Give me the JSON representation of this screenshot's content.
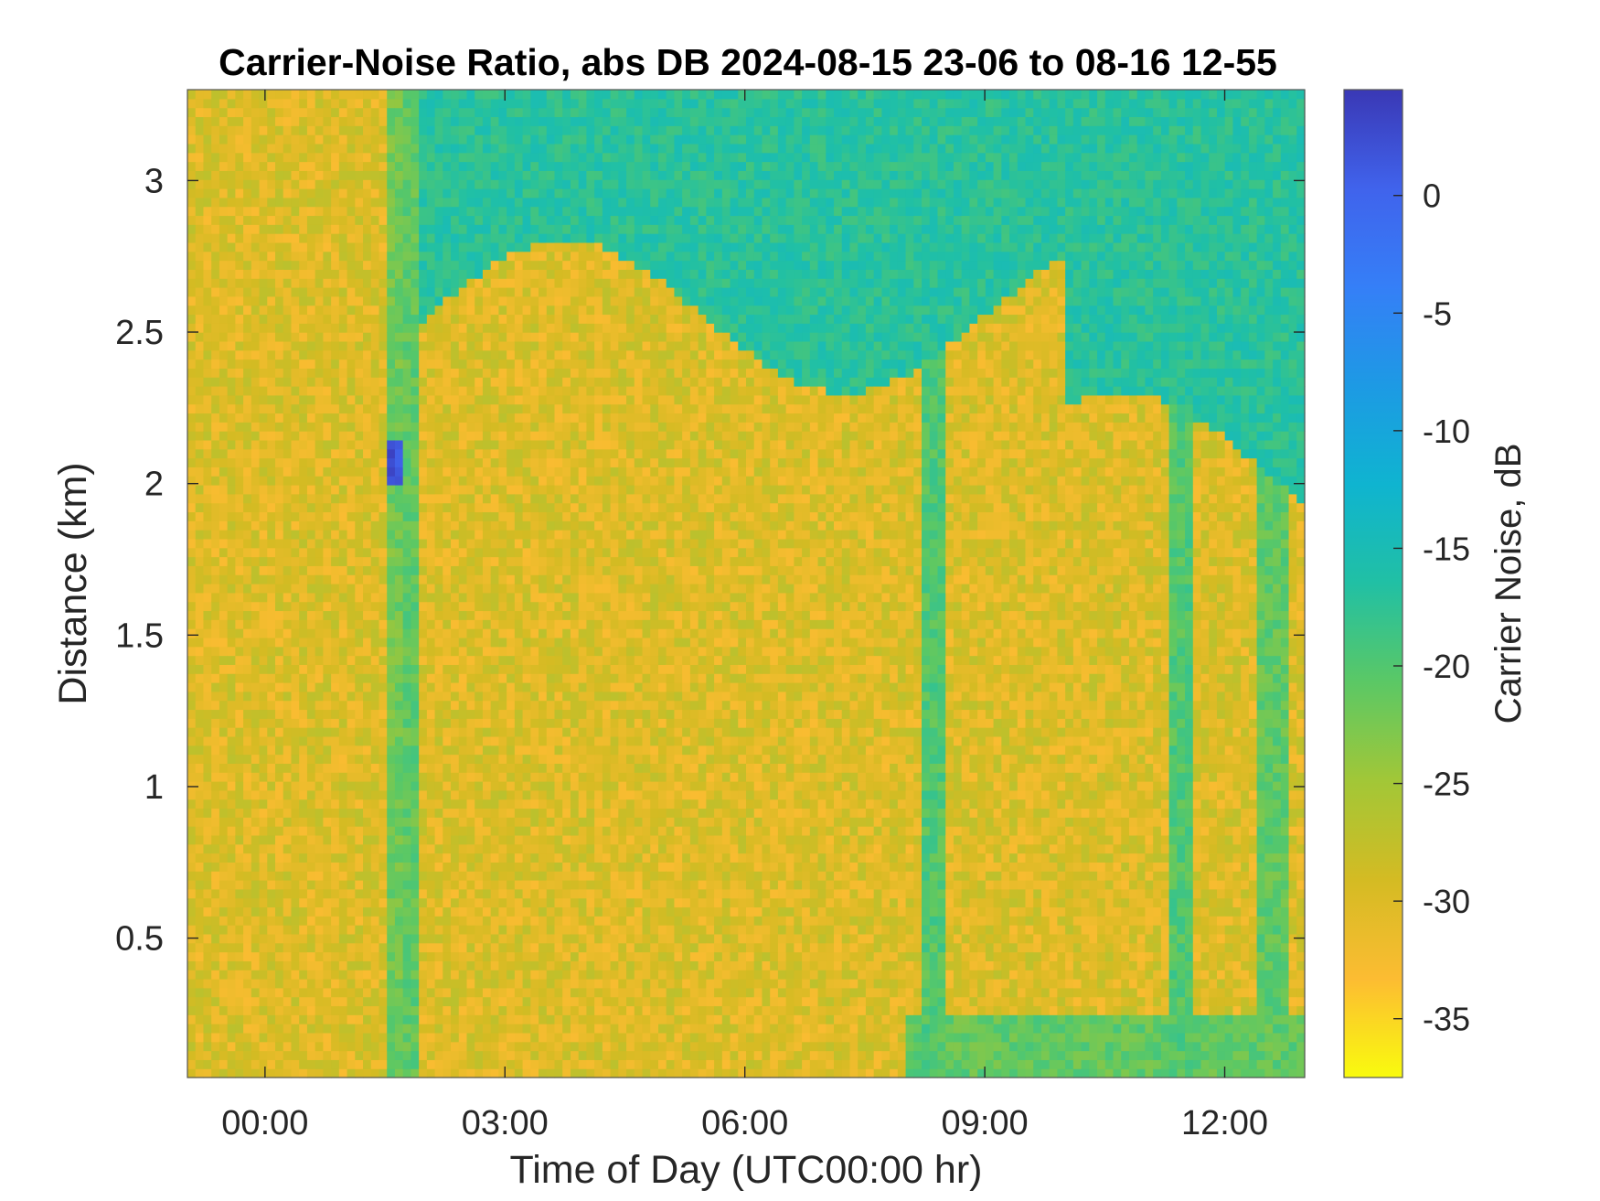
{
  "chart_data": {
    "type": "heatmap",
    "title": "Carrier-Noise Ratio, abs DB 2024-08-15 23-06 to 08-16 12-55",
    "xlabel": "Time of Day (UTC00:00 hr)",
    "ylabel": "Distance (km)",
    "colorbar_label": "Carrier Noise, dB",
    "xlim": [
      -0.97,
      13.0
    ],
    "ylim": [
      0.04,
      3.3
    ],
    "clim": [
      -37.5,
      4.5
    ],
    "x_ticks": [
      0,
      3,
      6,
      9,
      12
    ],
    "x_tick_labels": [
      "00:00",
      "03:00",
      "06:00",
      "09:00",
      "12:00"
    ],
    "y_ticks": [
      0.5,
      1,
      1.5,
      2,
      2.5,
      3
    ],
    "y_tick_labels": [
      "0.5",
      "1",
      "1.5",
      "2",
      "2.5",
      "3"
    ],
    "colorbar_ticks": [
      0,
      -5,
      -10,
      -15,
      -20,
      -25,
      -30,
      -35
    ],
    "colorbar_tick_labels": [
      "0",
      "-5",
      "-10",
      "-15",
      "-20",
      "-25",
      "-30",
      "-35"
    ],
    "colormap": [
      "#f9fb0e",
      "#fcbc32",
      "#d4bb23",
      "#a2c737",
      "#5bc865",
      "#21c0a4",
      "#0fb4d0",
      "#1d9ae4",
      "#357ff7",
      "#4063ec",
      "#3a38b5"
    ],
    "grid": false,
    "background_level_db": -30,
    "features": [
      {
        "kind": "column_band",
        "time_hr": [
          1.5,
          1.7
        ],
        "distance_km": [
          0.04,
          3.3
        ],
        "value_db": -22
      },
      {
        "kind": "column_band",
        "time_hr": [
          1.75,
          1.95
        ],
        "distance_km": [
          0.04,
          3.3
        ],
        "value_db": -21
      },
      {
        "kind": "hot_spot",
        "time_hr": [
          1.5,
          1.72
        ],
        "distance_km": [
          2.0,
          2.13
        ],
        "value_db": 2
      },
      {
        "kind": "cloud_layer",
        "time_hr": [
          1.9,
          13.0
        ],
        "distance_km": [
          2.55,
          3.3
        ],
        "value_db": -17
      },
      {
        "kind": "column_band",
        "time_hr": [
          8.2,
          8.5
        ],
        "distance_km": [
          0.04,
          3.3
        ],
        "value_db": -20
      },
      {
        "kind": "column_band",
        "time_hr": [
          11.3,
          11.6
        ],
        "distance_km": [
          0.04,
          3.3
        ],
        "value_db": -20
      },
      {
        "kind": "column_band",
        "time_hr": [
          12.4,
          12.8
        ],
        "distance_km": [
          0.04,
          3.3
        ],
        "value_db": -21
      },
      {
        "kind": "surface_layer",
        "time_hr": [
          8.0,
          13.0
        ],
        "distance_km": [
          0.04,
          0.25
        ],
        "value_db": -21
      }
    ]
  }
}
